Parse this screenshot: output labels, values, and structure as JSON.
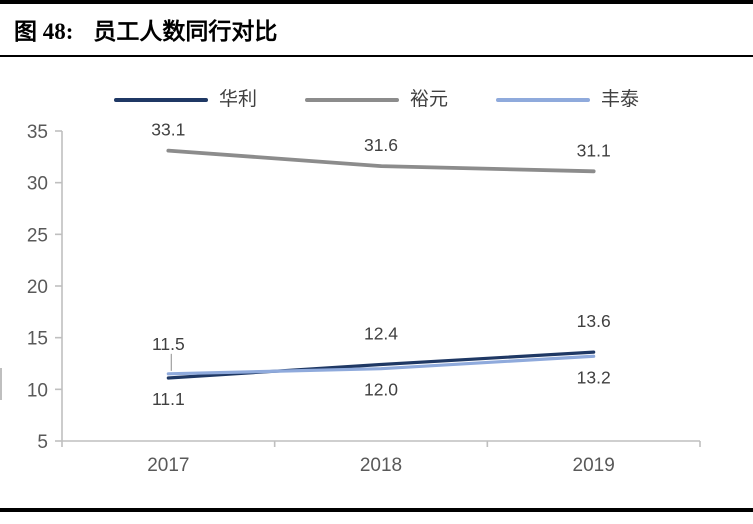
{
  "figure": {
    "label": "图 48:",
    "title": "员工人数同行对比"
  },
  "chart_data": {
    "type": "line",
    "categories": [
      "2017",
      "2018",
      "2019"
    ],
    "series": [
      {
        "name": "华利",
        "values": [
          11.1,
          12.4,
          13.6
        ],
        "color": "#1F3864",
        "label_pos": [
          "below",
          "above",
          "above"
        ],
        "leader_points": []
      },
      {
        "name": "裕元",
        "values": [
          33.1,
          31.6,
          31.1
        ],
        "color": "#8C8C8C",
        "label_pos": [
          "above",
          "above",
          "above"
        ],
        "leader_points": []
      },
      {
        "name": "丰泰",
        "values": [
          11.5,
          12.0,
          13.2
        ],
        "color": "#8FAADC",
        "label_pos": [
          "above",
          "below",
          "below"
        ],
        "leader_points": [
          0
        ]
      }
    ],
    "yticks": [
      5,
      10,
      15,
      20,
      25,
      30,
      35
    ],
    "ylim": [
      5,
      35
    ],
    "grid": false,
    "legend_position": "top",
    "colors": {
      "axis": "#BFBFBF",
      "tick_label": "#595959",
      "data_label": "#404040",
      "leader_line": "#A6A6A6"
    }
  }
}
